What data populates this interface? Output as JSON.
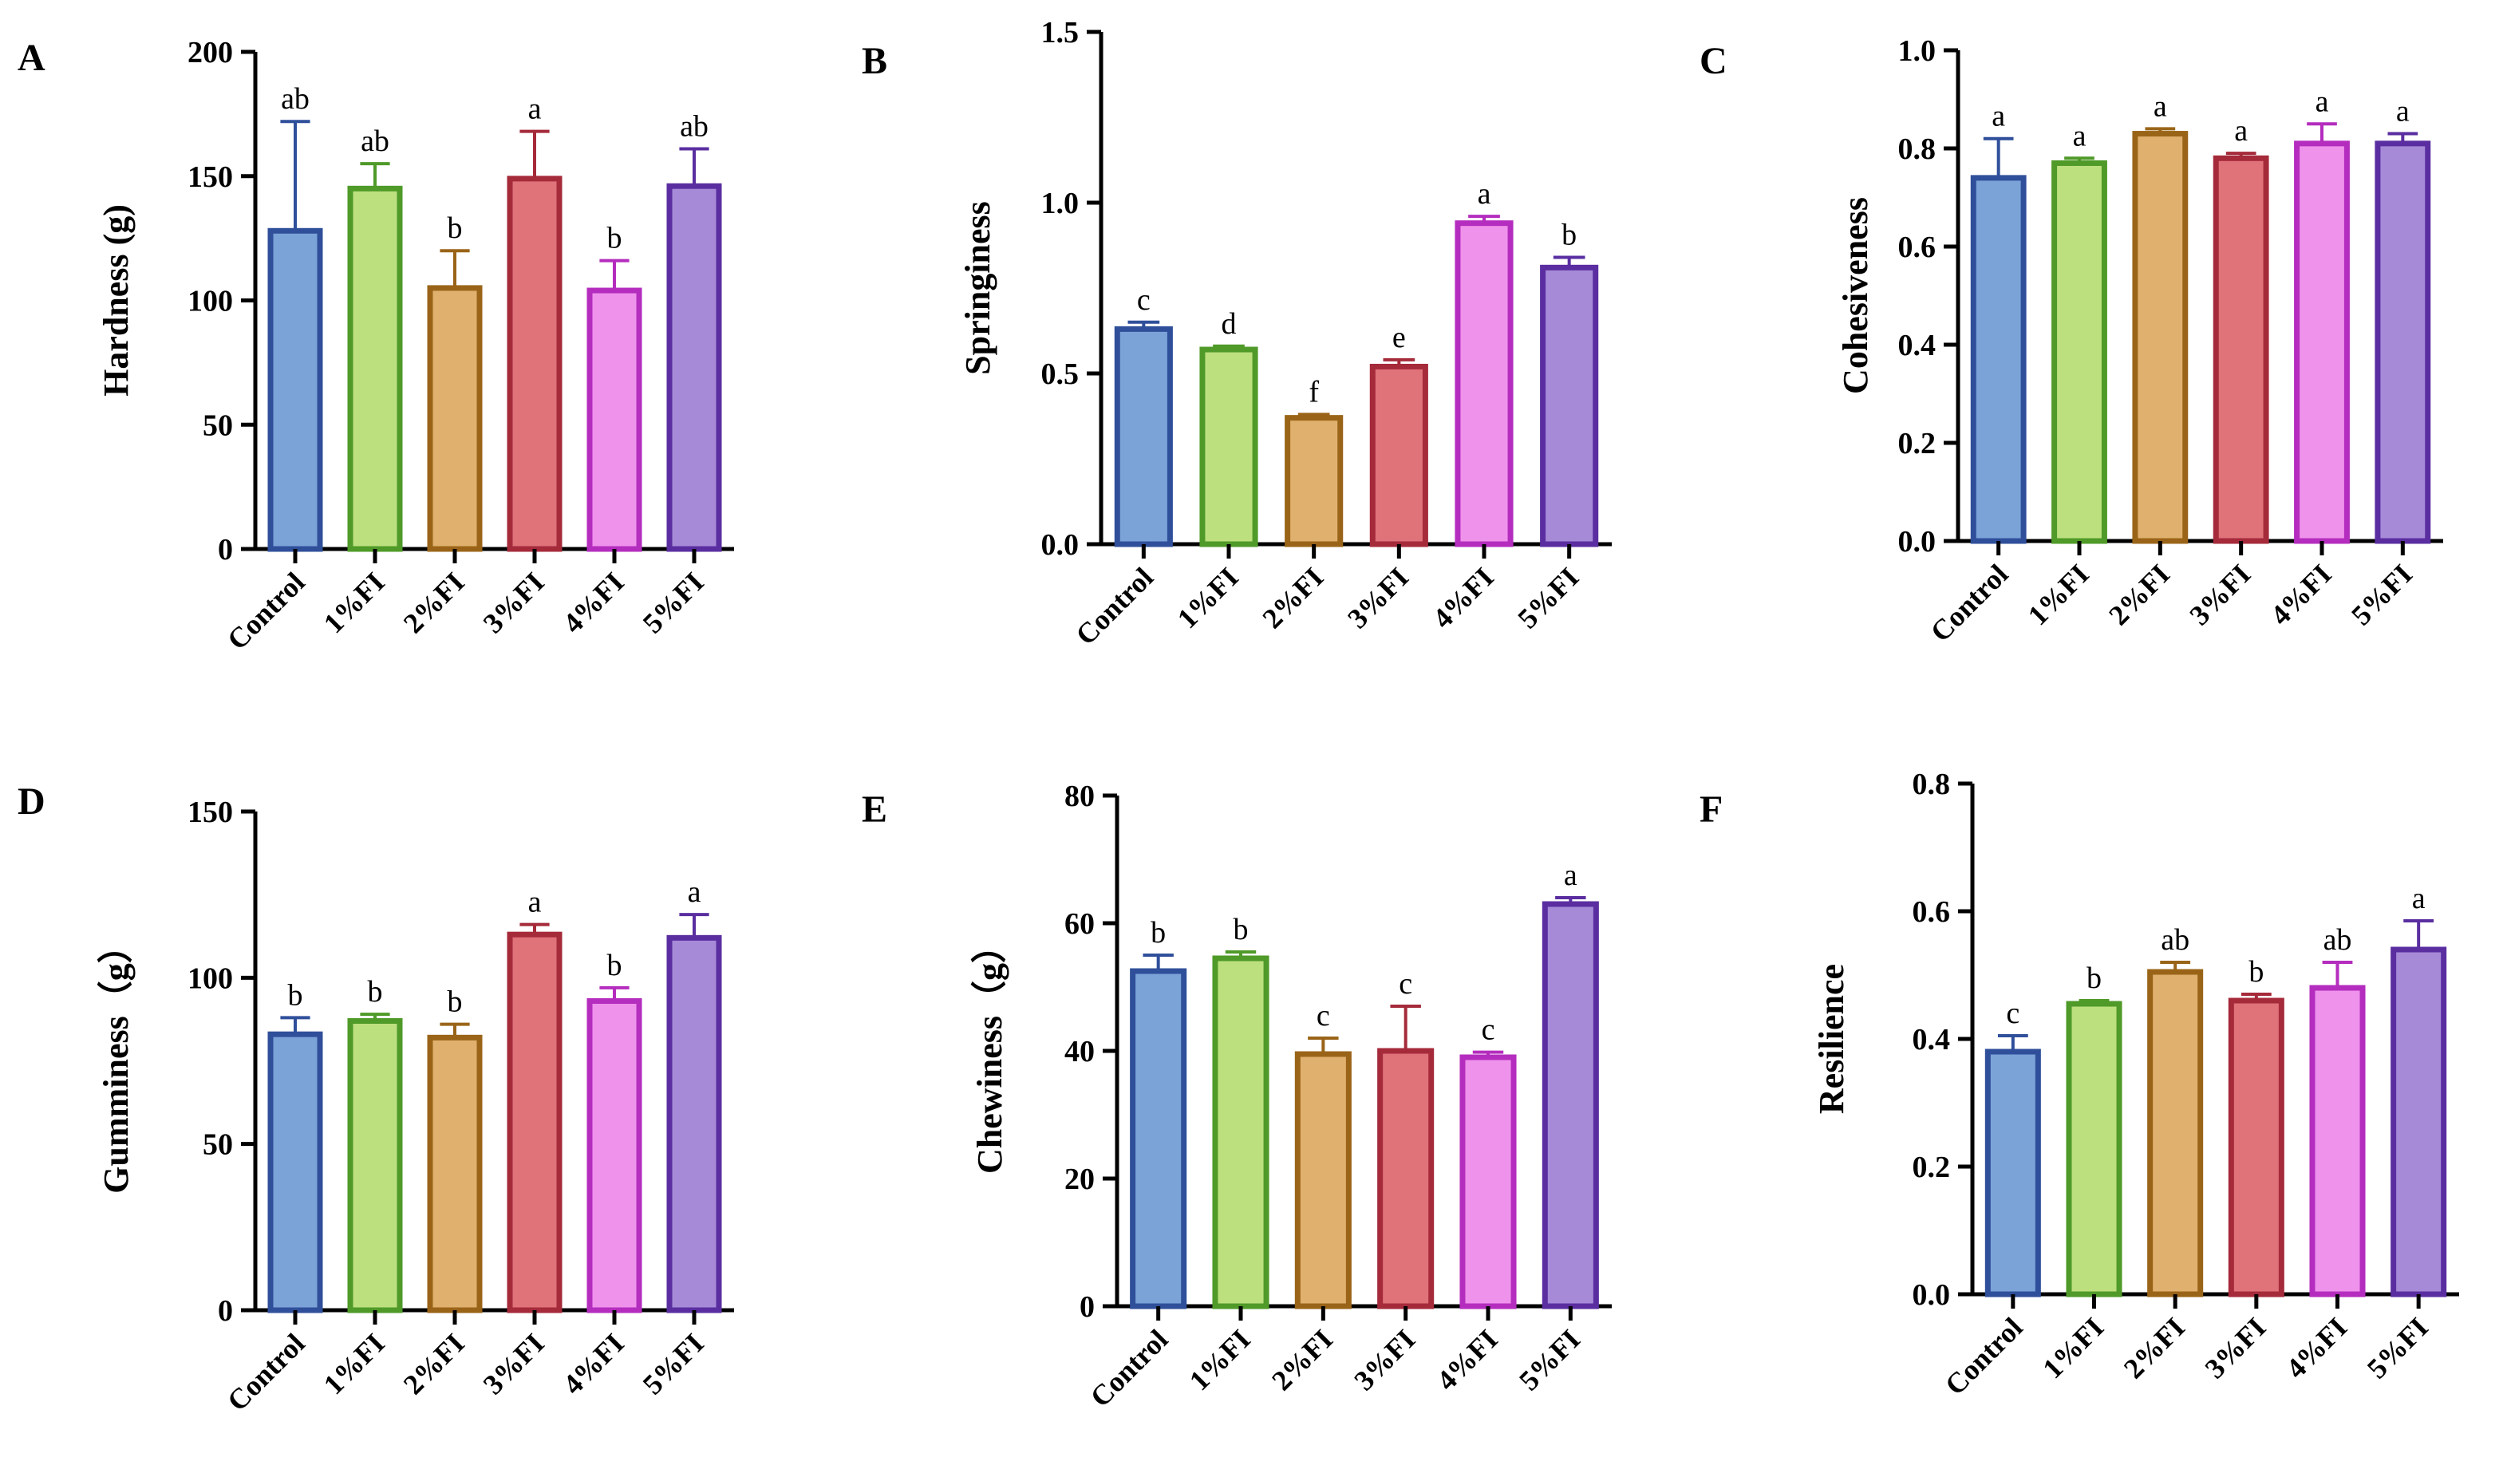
{
  "figure": {
    "colors": {
      "axis": "#000000",
      "fills": [
        "#7ba3d8",
        "#bde07f",
        "#e0b06e",
        "#e0727a",
        "#ef92ec",
        "#a68ad7"
      ],
      "edges": [
        "#2f4f9a",
        "#4f9a28",
        "#9a6418",
        "#a52a3a",
        "#b42dbe",
        "#5a2ea0"
      ]
    }
  },
  "chart_data": [
    {
      "panel": "A",
      "type": "bar",
      "ylabel": "Hardness (g)",
      "categories": [
        "Control",
        "1%FI",
        "2%FI",
        "3%FI",
        "4%FI",
        "5%FI"
      ],
      "values": [
        128,
        145,
        105,
        149,
        104,
        146
      ],
      "errors": [
        44,
        10,
        15,
        19,
        12,
        15
      ],
      "letters": [
        "ab",
        "ab",
        "b",
        "a",
        "b",
        "ab"
      ],
      "ylim": [
        0,
        200
      ],
      "yticks": [
        0,
        50,
        100,
        150,
        200
      ],
      "ytick_labels": [
        "0",
        "50",
        "100",
        "150",
        "200"
      ]
    },
    {
      "panel": "B",
      "type": "bar",
      "ylabel": "Springiness",
      "categories": [
        "Control",
        "1%FI",
        "2%FI",
        "3%FI",
        "4%FI",
        "5%FI"
      ],
      "values": [
        0.63,
        0.57,
        0.37,
        0.52,
        0.94,
        0.81
      ],
      "errors": [
        0.02,
        0.01,
        0.01,
        0.02,
        0.02,
        0.03
      ],
      "letters": [
        "c",
        "d",
        "f",
        "e",
        "a",
        "b"
      ],
      "ylim": [
        0,
        1.5
      ],
      "yticks": [
        0,
        0.5,
        1.0,
        1.5
      ],
      "ytick_labels": [
        "0.0",
        "0.5",
        "1.0",
        "1.5"
      ]
    },
    {
      "panel": "C",
      "type": "bar",
      "ylabel": "Cohesiveness",
      "categories": [
        "Control",
        "1%FI",
        "2%FI",
        "3%FI",
        "4%FI",
        "5%FI"
      ],
      "values": [
        0.74,
        0.77,
        0.83,
        0.78,
        0.81,
        0.81
      ],
      "errors": [
        0.08,
        0.01,
        0.01,
        0.01,
        0.04,
        0.02
      ],
      "letters": [
        "a",
        "a",
        "a",
        "a",
        "a",
        "a"
      ],
      "ylim": [
        0,
        1.0
      ],
      "yticks": [
        0,
        0.2,
        0.4,
        0.6,
        0.8,
        1.0
      ],
      "ytick_labels": [
        "0.0",
        "0.2",
        "0.4",
        "0.6",
        "0.8",
        "1.0"
      ]
    },
    {
      "panel": "D",
      "type": "bar",
      "ylabel": "Gumminess（g）",
      "categories": [
        "Control",
        "1%FI",
        "2%FI",
        "3%FI",
        "4%FI",
        "5%FI"
      ],
      "values": [
        83,
        87,
        82,
        113,
        93,
        112
      ],
      "errors": [
        5,
        2,
        4,
        3,
        4,
        7
      ],
      "letters": [
        "b",
        "b",
        "b",
        "a",
        "b",
        "a"
      ],
      "ylim": [
        0,
        150
      ],
      "yticks": [
        0,
        50,
        100,
        150
      ],
      "ytick_labels": [
        "0",
        "50",
        "100",
        "150"
      ]
    },
    {
      "panel": "E",
      "type": "bar",
      "ylabel": "Chewiness（g）",
      "categories": [
        "Control",
        "1%FI",
        "2%FI",
        "3%FI",
        "4%FI",
        "5%FI"
      ],
      "values": [
        52.5,
        54.5,
        39.5,
        40,
        39,
        63
      ],
      "errors": [
        2.5,
        1,
        2.5,
        7,
        0.8,
        1
      ],
      "letters": [
        "b",
        "b",
        "c",
        "c",
        "c",
        "a"
      ],
      "ylim": [
        0,
        80
      ],
      "yticks": [
        0,
        20,
        40,
        60,
        80
      ],
      "ytick_labels": [
        "0",
        "20",
        "40",
        "60",
        "80"
      ]
    },
    {
      "panel": "F",
      "type": "bar",
      "ylabel": "Resilience",
      "categories": [
        "Control",
        "1%FI",
        "2%FI",
        "3%FI",
        "4%FI",
        "5%FI"
      ],
      "values": [
        0.38,
        0.455,
        0.505,
        0.46,
        0.48,
        0.54
      ],
      "errors": [
        0.025,
        0.005,
        0.015,
        0.01,
        0.04,
        0.045
      ],
      "letters": [
        "c",
        "b",
        "ab",
        "b",
        "ab",
        "a"
      ],
      "ylim": [
        0,
        0.8
      ],
      "yticks": [
        0,
        0.2,
        0.4,
        0.6,
        0.8
      ],
      "ytick_labels": [
        "0.0",
        "0.2",
        "0.4",
        "0.6",
        "0.8"
      ]
    }
  ]
}
